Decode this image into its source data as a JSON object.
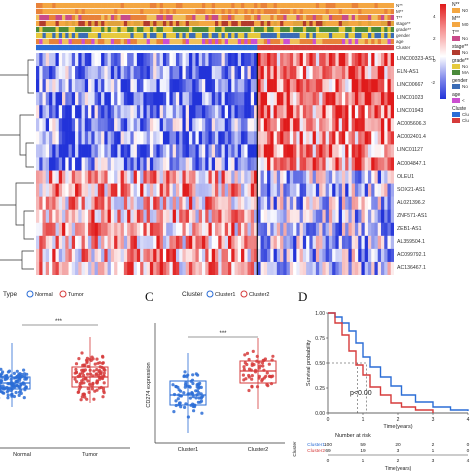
{
  "heatmap": {
    "annotation_tracks": [
      "N**",
      "M**",
      "T**",
      "stage**",
      "grade**",
      "gender",
      "age",
      "Cluster"
    ],
    "genes": [
      "LINC00323-AS1",
      "ELN-AS1",
      "LINC00667",
      "LINC01023",
      "LINC01943",
      "AC005606.3",
      "AC002401.4",
      "LINC01127",
      "AC004847.1",
      "OLEU1",
      "SOX21-AS1",
      "AL021396.2",
      "ZNF571-AS1",
      "ZEB1-AS1",
      "AL359504.1",
      "AC099792.1",
      "AC136467.1"
    ],
    "colorbar_ticks": [
      "4",
      "2",
      "0",
      "-2"
    ],
    "legend": [
      {
        "title": "N**",
        "items": [
          {
            "label": "N0",
            "color": "#f4a742"
          }
        ]
      },
      {
        "title": "M**",
        "items": [
          {
            "label": "M0",
            "color": "#f4a742"
          }
        ]
      },
      {
        "title": "T**",
        "items": [
          {
            "label": "No",
            "color": "#c94b8a"
          }
        ]
      },
      {
        "title": "stage**",
        "items": [
          {
            "label": "No",
            "color": "#b23a2d"
          }
        ]
      },
      {
        "title": "grade**",
        "items": [
          {
            "label": "No",
            "color": "#e6c93c"
          },
          {
            "label": "MA",
            "color": "#4a8a3a"
          }
        ]
      },
      {
        "title": "gender",
        "items": [
          {
            "label": "No",
            "color": "#3a6bb5"
          }
        ]
      },
      {
        "title": "age",
        "items": [
          {
            "label": "<",
            "color": "#cc4fd1"
          }
        ]
      },
      {
        "title": "Cluste",
        "items": [
          {
            "label": "Clu",
            "color": "#2b6dd6"
          },
          {
            "label": "Clu",
            "color": "#d63b3b"
          }
        ]
      }
    ],
    "colors": {
      "low": "#2233d9",
      "mid": "#ffffff",
      "high": "#e01a1a"
    }
  },
  "panel_b": {
    "legend_title": "Type",
    "legend_items": [
      {
        "label": "Normal",
        "color": "#2b6dd6"
      },
      {
        "label": "Tumor",
        "color": "#d63b3b"
      }
    ],
    "significance": "***",
    "x_labels": [
      "Normal",
      "Tumor"
    ]
  },
  "panel_c": {
    "letter": "C",
    "legend_title": "Cluster",
    "legend_items": [
      {
        "label": "Cluster1",
        "color": "#2b6dd6"
      },
      {
        "label": "Cluster2",
        "color": "#d63b3b"
      }
    ],
    "significance": "***",
    "ylabel": "CD274 expression",
    "x_labels": [
      "Cluster1",
      "Cluster2"
    ]
  },
  "panel_d": {
    "letter": "D",
    "ylabel": "Survival probability",
    "xlabel": "Time(years)",
    "pvalue": "p<0.00",
    "y_ticks": [
      "1.00",
      "0.75",
      "0.50",
      "0.25",
      "0.00"
    ],
    "x_ticks": [
      "0",
      "1",
      "2",
      "3",
      "4"
    ],
    "risk_title": "Number at risk",
    "risk_xlabel": "Time(years)",
    "risk_rows": [
      {
        "label": "Cluster1",
        "values": [
          "100",
          "59",
          "20",
          "2",
          "0"
        ],
        "color": "#2b6dd6"
      },
      {
        "label": "Cluster2",
        "values": [
          "69",
          "19",
          "3",
          "1",
          "0"
        ],
        "color": "#d63b3b"
      }
    ],
    "risk_side_label": "Cluster"
  },
  "chart_data": [
    {
      "type": "heatmap",
      "rows": [
        "LINC00323-AS1",
        "ELN-AS1",
        "LINC00667",
        "LINC01023",
        "LINC01943",
        "AC005606.3",
        "AC002401.4",
        "LINC01127",
        "AC004847.1",
        "OLEU1",
        "SOX21-AS1",
        "AL021396.2",
        "ZNF571-AS1",
        "ZEB1-AS1",
        "AL359504.1",
        "AC099792.1",
        "AC136467.1"
      ],
      "color_range": [
        -2,
        4
      ],
      "annotations": [
        "N**",
        "M**",
        "T**",
        "stage**",
        "grade**",
        "gender",
        "age",
        "Cluster"
      ]
    },
    {
      "type": "box",
      "categories": [
        "Normal",
        "Tumor"
      ],
      "significance": "***"
    },
    {
      "type": "box",
      "categories": [
        "Cluster1",
        "Cluster2"
      ],
      "ylabel": "CD274 expression",
      "significance": "***"
    },
    {
      "type": "line",
      "xlabel": "Time(years)",
      "ylabel": "Survival probability",
      "xlim": [
        0,
        4
      ],
      "ylim": [
        0,
        1
      ],
      "series": [
        {
          "name": "Cluster1",
          "x": [
            0,
            0.2,
            0.4,
            0.6,
            0.8,
            1.0,
            1.2,
            1.5,
            1.8,
            2.1,
            2.5,
            3.0,
            3.5,
            4.0
          ],
          "y": [
            1.0,
            0.96,
            0.9,
            0.82,
            0.7,
            0.56,
            0.46,
            0.36,
            0.27,
            0.18,
            0.11,
            0.06,
            0.03,
            0.02
          ]
        },
        {
          "name": "Cluster2",
          "x": [
            0,
            0.2,
            0.4,
            0.6,
            0.8,
            1.0,
            1.2,
            1.5,
            1.8,
            2.1,
            2.5,
            3.0
          ],
          "y": [
            1.0,
            0.9,
            0.78,
            0.62,
            0.48,
            0.38,
            0.26,
            0.18,
            0.1,
            0.06,
            0.03,
            0.0
          ]
        }
      ]
    }
  ]
}
